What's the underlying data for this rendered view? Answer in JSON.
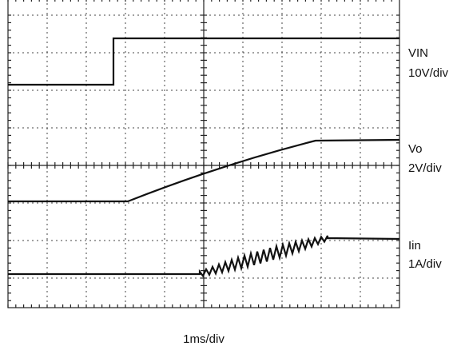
{
  "labels": {
    "vin": "VIN",
    "vin_scale": "10V/div",
    "vo": "Vo",
    "vo_scale": "2V/div",
    "iin": "Iin",
    "iin_scale": "1A/div",
    "time_scale": "1ms/div"
  }
}
